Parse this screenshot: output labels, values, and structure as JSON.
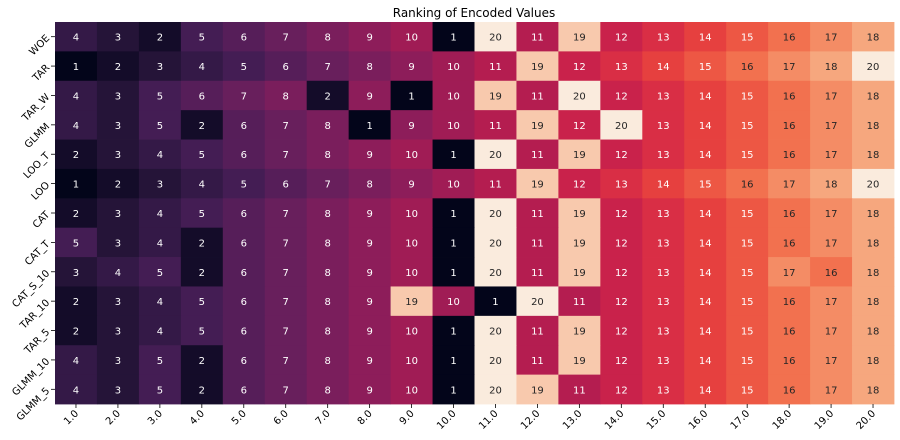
{
  "chart_data": {
    "type": "heatmap",
    "title": "Ranking of Encoded Values",
    "xlabel": "",
    "ylabel": "",
    "colorbar": false,
    "colormap": "rocket",
    "value_range": [
      1,
      20
    ],
    "x_categories": [
      "1.0",
      "2.0",
      "3.0",
      "4.0",
      "5.0",
      "6.0",
      "7.0",
      "8.0",
      "9.0",
      "10.0",
      "11.0",
      "12.0",
      "13.0",
      "14.0",
      "15.0",
      "16.0",
      "17.0",
      "18.0",
      "19.0",
      "20.0"
    ],
    "y_categories": [
      "WOE",
      "TAR",
      "TAR_W",
      "GLMM",
      "LOO_T",
      "LOO",
      "CAT",
      "CAT_T",
      "CAT_S_10",
      "TAR_10",
      "TAR_5",
      "GLMM_10",
      "GLMM_5"
    ],
    "values": [
      [
        4,
        3,
        2,
        5,
        6,
        7,
        8,
        9,
        10,
        1,
        20,
        11,
        19,
        12,
        13,
        14,
        15,
        16,
        17,
        18
      ],
      [
        1,
        2,
        3,
        4,
        5,
        6,
        7,
        8,
        9,
        10,
        11,
        19,
        12,
        13,
        14,
        15,
        16,
        17,
        18,
        20
      ],
      [
        4,
        3,
        5,
        6,
        7,
        8,
        2,
        9,
        1,
        10,
        19,
        11,
        20,
        12,
        13,
        14,
        15,
        16,
        17,
        18
      ],
      [
        4,
        3,
        5,
        2,
        6,
        7,
        8,
        1,
        9,
        10,
        11,
        19,
        12,
        20,
        13,
        14,
        15,
        16,
        17,
        18
      ],
      [
        2,
        3,
        4,
        5,
        6,
        7,
        8,
        9,
        10,
        1,
        20,
        11,
        19,
        12,
        13,
        14,
        15,
        16,
        17,
        18
      ],
      [
        1,
        2,
        3,
        4,
        5,
        6,
        7,
        8,
        9,
        10,
        11,
        19,
        12,
        13,
        14,
        15,
        16,
        17,
        18,
        20
      ],
      [
        2,
        3,
        4,
        5,
        6,
        7,
        8,
        9,
        10,
        1,
        20,
        11,
        19,
        12,
        13,
        14,
        15,
        16,
        17,
        18
      ],
      [
        5,
        3,
        4,
        2,
        6,
        7,
        8,
        9,
        10,
        1,
        20,
        11,
        19,
        12,
        13,
        14,
        15,
        16,
        17,
        18
      ],
      [
        3,
        4,
        5,
        2,
        6,
        7,
        8,
        9,
        10,
        1,
        20,
        11,
        19,
        12,
        13,
        14,
        15,
        17,
        16,
        18
      ],
      [
        2,
        3,
        4,
        5,
        6,
        7,
        8,
        9,
        19,
        10,
        1,
        20,
        11,
        12,
        13,
        14,
        15,
        16,
        17,
        18
      ],
      [
        2,
        3,
        4,
        5,
        6,
        7,
        8,
        9,
        10,
        1,
        20,
        11,
        19,
        12,
        13,
        14,
        15,
        16,
        17,
        18
      ],
      [
        4,
        3,
        5,
        2,
        6,
        7,
        8,
        9,
        10,
        1,
        20,
        11,
        19,
        12,
        13,
        14,
        15,
        16,
        17,
        18
      ],
      [
        4,
        3,
        5,
        2,
        6,
        7,
        8,
        9,
        10,
        1,
        20,
        19,
        11,
        12,
        13,
        14,
        15,
        16,
        17,
        18
      ]
    ]
  }
}
